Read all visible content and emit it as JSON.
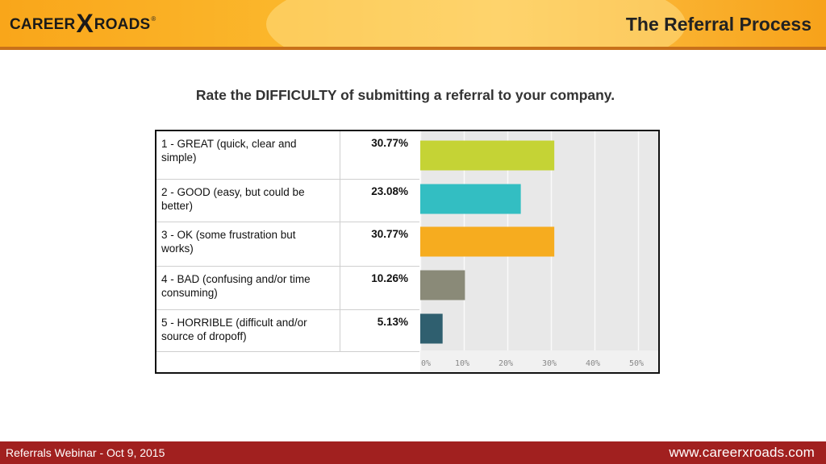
{
  "header": {
    "logo_left": "CAREER",
    "logo_x": "X",
    "logo_right": "ROADS",
    "logo_reg": "®",
    "title": "The Referral Process"
  },
  "question": "Rate the DIFFICULTY of submitting a referral to your company.",
  "rows": [
    {
      "label": "1 - GREAT (quick, clear and simple)",
      "pct": "30.77%"
    },
    {
      "label": "2 - GOOD (easy, but could be better)",
      "pct": "23.08%"
    },
    {
      "label": "3 - OK (some frustration but works)",
      "pct": "30.77%"
    },
    {
      "label": "4 - BAD (confusing and/or time consuming)",
      "pct": "10.26%"
    },
    {
      "label": "5 - HORRIBLE (difficult and/or source of dropoff)",
      "pct": "5.13%"
    }
  ],
  "chart_data": {
    "type": "bar",
    "orientation": "horizontal",
    "categories": [
      "1 - GREAT (quick, clear and simple)",
      "2 - GOOD (easy, but could be better)",
      "3 - OK (some frustration but works)",
      "4 - BAD (confusing and/or time consuming)",
      "5 - HORRIBLE (difficult and/or source of dropoff)"
    ],
    "values": [
      30.77,
      23.08,
      30.77,
      10.26,
      5.13
    ],
    "colors": [
      "#c5d335",
      "#33bec2",
      "#f6ac1f",
      "#8a8a78",
      "#2f5f6f"
    ],
    "xlim": [
      0,
      50
    ],
    "xticks": [
      "0%",
      "10%",
      "20%",
      "30%",
      "40%",
      "50%"
    ],
    "grid": true
  },
  "footer": {
    "left": "Referrals Webinar - Oct 9, 2015",
    "right": "www.careerxroads.com"
  }
}
